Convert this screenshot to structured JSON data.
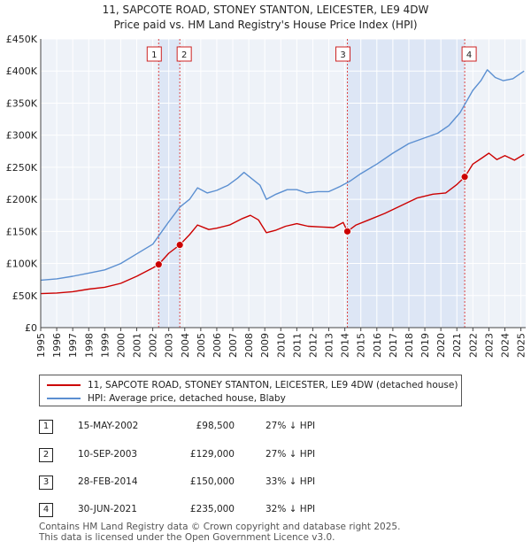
{
  "chart_data": {
    "type": "line",
    "title": "11, SAPCOTE ROAD, STONEY STANTON, LEICESTER, LE9 4DW",
    "subtitle": "Price paid vs. HM Land Registry's House Price Index (HPI)",
    "ylim": [
      0,
      450000
    ],
    "xlim": [
      1995,
      2025.3
    ],
    "yticks": [
      {
        "value": 0,
        "label": "£0"
      },
      {
        "value": 50000,
        "label": "£50K"
      },
      {
        "value": 100000,
        "label": "£100K"
      },
      {
        "value": 150000,
        "label": "£150K"
      },
      {
        "value": 200000,
        "label": "£200K"
      },
      {
        "value": 250000,
        "label": "£250K"
      },
      {
        "value": 300000,
        "label": "£300K"
      },
      {
        "value": 350000,
        "label": "£350K"
      },
      {
        "value": 400000,
        "label": "£400K"
      },
      {
        "value": 450000,
        "label": "£450K"
      }
    ],
    "xticks": [
      "1995",
      "1996",
      "1997",
      "1998",
      "1999",
      "2000",
      "2001",
      "2002",
      "2003",
      "2004",
      "2005",
      "2006",
      "2007",
      "2008",
      "2009",
      "2010",
      "2011",
      "2012",
      "2013",
      "2014",
      "2015",
      "2016",
      "2017",
      "2018",
      "2019",
      "2020",
      "2021",
      "2022",
      "2023",
      "2024",
      "2025"
    ],
    "series": [
      {
        "name": "11, SAPCOTE ROAD, STONEY STANTON, LEICESTER, LE9 4DW (detached house)",
        "color": "#cc0000",
        "points": [
          [
            1995.0,
            53000
          ],
          [
            1996.0,
            54000
          ],
          [
            1997.0,
            56000
          ],
          [
            1998.0,
            60000
          ],
          [
            1999.0,
            63000
          ],
          [
            2000.0,
            69000
          ],
          [
            2001.0,
            80000
          ],
          [
            2002.0,
            93000
          ],
          [
            2002.37,
            98500
          ],
          [
            2003.0,
            116000
          ],
          [
            2003.69,
            129000
          ],
          [
            2004.3,
            145000
          ],
          [
            2004.8,
            160000
          ],
          [
            2005.5,
            153000
          ],
          [
            2006.0,
            155000
          ],
          [
            2006.8,
            160000
          ],
          [
            2007.6,
            170000
          ],
          [
            2008.1,
            175000
          ],
          [
            2008.6,
            168000
          ],
          [
            2009.1,
            148000
          ],
          [
            2009.7,
            152000
          ],
          [
            2010.3,
            158000
          ],
          [
            2011.0,
            162000
          ],
          [
            2011.7,
            158000
          ],
          [
            2012.5,
            157000
          ],
          [
            2013.3,
            156000
          ],
          [
            2013.9,
            164000
          ],
          [
            2014.16,
            150000
          ],
          [
            2014.7,
            160000
          ],
          [
            2015.5,
            168000
          ],
          [
            2016.5,
            178000
          ],
          [
            2017.5,
            190000
          ],
          [
            2018.5,
            202000
          ],
          [
            2019.5,
            208000
          ],
          [
            2020.3,
            210000
          ],
          [
            2021.0,
            223000
          ],
          [
            2021.5,
            235000
          ],
          [
            2022.0,
            255000
          ],
          [
            2022.6,
            265000
          ],
          [
            2023.0,
            272000
          ],
          [
            2023.5,
            262000
          ],
          [
            2024.0,
            268000
          ],
          [
            2024.6,
            261000
          ],
          [
            2025.2,
            270000
          ]
        ]
      },
      {
        "name": "HPI: Average price, detached house, Blaby",
        "color": "#5b8fd1",
        "points": [
          [
            1995.0,
            74000
          ],
          [
            1996.0,
            76000
          ],
          [
            1997.0,
            80000
          ],
          [
            1998.0,
            85000
          ],
          [
            1999.0,
            90000
          ],
          [
            2000.0,
            100000
          ],
          [
            2001.0,
            115000
          ],
          [
            2002.0,
            130000
          ],
          [
            2003.0,
            165000
          ],
          [
            2003.7,
            188000
          ],
          [
            2004.3,
            200000
          ],
          [
            2004.8,
            218000
          ],
          [
            2005.4,
            210000
          ],
          [
            2006.0,
            214000
          ],
          [
            2006.7,
            222000
          ],
          [
            2007.3,
            233000
          ],
          [
            2007.7,
            242000
          ],
          [
            2008.2,
            232000
          ],
          [
            2008.7,
            222000
          ],
          [
            2009.1,
            200000
          ],
          [
            2009.7,
            208000
          ],
          [
            2010.4,
            215000
          ],
          [
            2011.0,
            215000
          ],
          [
            2011.6,
            210000
          ],
          [
            2012.3,
            212000
          ],
          [
            2013.0,
            212000
          ],
          [
            2013.7,
            220000
          ],
          [
            2014.3,
            228000
          ],
          [
            2015.0,
            240000
          ],
          [
            2016.0,
            255000
          ],
          [
            2017.0,
            272000
          ],
          [
            2018.0,
            287000
          ],
          [
            2019.0,
            296000
          ],
          [
            2019.8,
            303000
          ],
          [
            2020.5,
            315000
          ],
          [
            2021.2,
            335000
          ],
          [
            2022.0,
            370000
          ],
          [
            2022.5,
            385000
          ],
          [
            2022.9,
            402000
          ],
          [
            2023.4,
            390000
          ],
          [
            2023.9,
            385000
          ],
          [
            2024.5,
            388000
          ],
          [
            2025.2,
            400000
          ]
        ]
      }
    ],
    "transactions": [
      {
        "num": "1",
        "year": 2002.37,
        "price": 98500
      },
      {
        "num": "2",
        "year": 2003.69,
        "price": 129000
      },
      {
        "num": "3",
        "year": 2014.16,
        "price": 150000
      },
      {
        "num": "4",
        "year": 2021.49,
        "price": 235000
      }
    ],
    "shaded_ranges": [
      [
        2002.37,
        2003.69
      ],
      [
        2014.16,
        2021.49
      ]
    ],
    "legend": [
      {
        "label": "11, SAPCOTE ROAD, STONEY STANTON, LEICESTER, LE9 4DW (detached house)",
        "color": "#cc0000"
      },
      {
        "label": "HPI: Average price, detached house, Blaby",
        "color": "#5b8fd1"
      }
    ]
  },
  "table": [
    {
      "num": "1",
      "date": "15-MAY-2002",
      "price": "£98,500",
      "hpi": "27% ↓ HPI"
    },
    {
      "num": "2",
      "date": "10-SEP-2003",
      "price": "£129,000",
      "hpi": "27% ↓ HPI"
    },
    {
      "num": "3",
      "date": "28-FEB-2014",
      "price": "£150,000",
      "hpi": "33% ↓ HPI"
    },
    {
      "num": "4",
      "date": "30-JUN-2021",
      "price": "£235,000",
      "hpi": "32% ↓ HPI"
    }
  ],
  "footer": {
    "line1": "Contains HM Land Registry data © Crown copyright and database right 2025.",
    "line2": "This data is licensed under the Open Government Licence v3.0."
  }
}
